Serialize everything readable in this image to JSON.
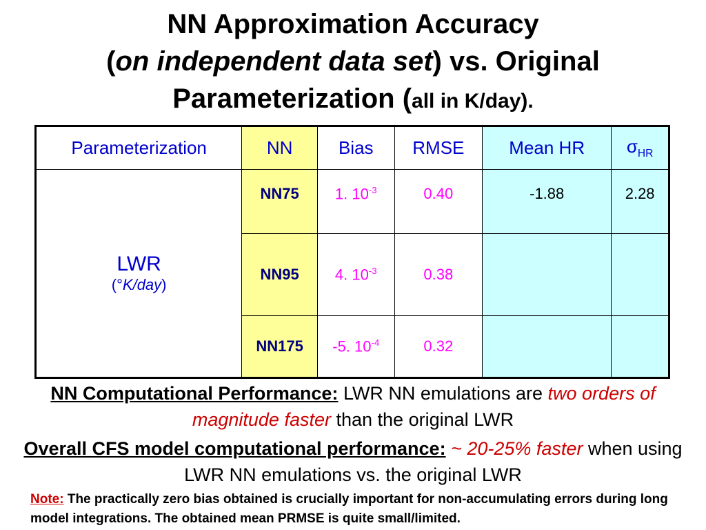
{
  "title": {
    "line1": "NN Approximation Accuracy",
    "line2_open": "(",
    "line2_italic": "on independent data set",
    "line2_rest": ") vs. Original",
    "line3_main": "Parameterization (",
    "line3_small": "all in K/day)."
  },
  "table": {
    "headers": {
      "param": "Parameterization",
      "nn": "NN",
      "bias": "Bias",
      "rmse": "RMSE",
      "mean_hr": "Mean HR",
      "sigma": "σ",
      "sigma_sub": "HR"
    },
    "group_label": "LWR",
    "group_unit_open": "(",
    "group_unit_deg": "°",
    "group_unit_italic": "K/day",
    "group_unit_close": ")",
    "rows": [
      {
        "nn": "NN75",
        "bias_base": "1. 10",
        "bias_exp": "-3",
        "rmse": "0.40",
        "mean_hr": "-1.88",
        "sigma_hr": "2.28"
      },
      {
        "nn": "NN95",
        "bias_base": "4. 10",
        "bias_exp": "-3",
        "rmse": "0.38",
        "mean_hr": "",
        "sigma_hr": ""
      },
      {
        "nn": "NN175",
        "bias_base": "-5. 10",
        "bias_exp": "-4",
        "rmse": "0.32",
        "mean_hr": "",
        "sigma_hr": ""
      }
    ]
  },
  "perf1": {
    "label": "NN Computational Performance:",
    "text1": " LWR NN emulations are ",
    "emph": "two orders of magnitude faster",
    "text2": " than the original LWR"
  },
  "perf2": {
    "label": "Overall CFS model computational performance:",
    "emph": " ~ 20-25% faster",
    "text": " when using LWR NN emulations vs. the original LWR"
  },
  "note": {
    "label": "Note:",
    "text": " The practically zero bias obtained is crucially important for non-accumulating errors during long model integrations. The obtained mean PRMSE is quite small/limited."
  },
  "colors": {
    "nn_column": "#ffff99",
    "hr_columns": "#ccffff",
    "header_text": "#0000cc",
    "values_text": "#ff00ff",
    "emphasis": "#cc0000"
  }
}
